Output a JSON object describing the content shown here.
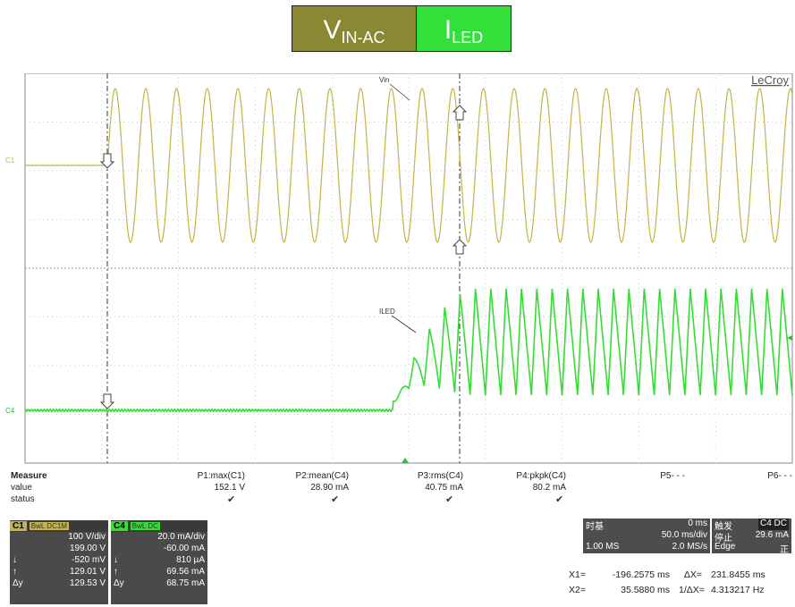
{
  "legend": {
    "vin_main": "V",
    "vin_sub": "IN-AC",
    "vin_color": "#8a8832",
    "iled_main": "I",
    "iled_sub": "LED",
    "iled_color": "#33e03a"
  },
  "scope": {
    "brand": "LeCroy",
    "vin_label": "Vin",
    "iled_label": "ILED",
    "c1_marker": "C1",
    "c4_marker": "C4",
    "c1_color": "#c2b44a",
    "c4_color": "#33dd33"
  },
  "chart_data": {
    "type": "line",
    "x_unit": "ms",
    "xlim": [
      -250,
      250
    ],
    "x_div": "50.0 ms/div",
    "series": [
      {
        "name": "C1",
        "unit": "V",
        "scale": "100 V/div",
        "before_switch_on": "flat",
        "after_switch_on": "sine ~50 Hz, ~152 V peak",
        "switch_on_ms": -196.2575
      },
      {
        "name": "C4",
        "unit": "mA",
        "scale": "20.0 mA/div",
        "before_switch_on": "~0 mA flat",
        "rise_start_ms": -10,
        "steady_peak_ma": 80,
        "steady_valley_ma": 10
      }
    ],
    "cursors": {
      "x1_ms": -196.2575,
      "x2_ms": 35.588
    }
  },
  "measure": {
    "title": "Measure",
    "row_value": "value",
    "row_status": "status",
    "params": [
      {
        "name": "P1:max(C1)",
        "value": "152.1 V",
        "status": "✔"
      },
      {
        "name": "P2:mean(C4)",
        "value": "28.90 mA",
        "status": "✔"
      },
      {
        "name": "P3:rms(C4)",
        "value": "40.75 mA",
        "status": "✔"
      },
      {
        "name": "P4:pkpk(C4)",
        "value": "80.2 mA",
        "status": "✔"
      },
      {
        "name": "P5- - -",
        "value": "",
        "status": ""
      },
      {
        "name": "P6- - -",
        "value": "",
        "status": ""
      }
    ]
  },
  "c1box": {
    "tag": "C1",
    "coupling": "BwL DC1M",
    "l1": "100 V/div",
    "l2": "199.00 V",
    "l3k": "↓",
    "l3v": "-520 mV",
    "l4k": "↑",
    "l4v": "129.01 V",
    "l5k": "Δy",
    "l5v": "129.53 V"
  },
  "c4box": {
    "tag": "C4",
    "coupling": "BwL DC",
    "l1": "20.0 mA/div",
    "l2": "-60.00 mA",
    "l3k": "↓",
    "l3v": "810 µA",
    "l4k": "↑",
    "l4v": "69.56 mA",
    "l5k": "Δy",
    "l5v": "68.75 mA"
  },
  "timebase": {
    "label": "时基",
    "offset": "0 ms",
    "div": "50.0 ms/div",
    "mem": "1.00 MS",
    "rate": "2.0 MS/s"
  },
  "trigger": {
    "label": "触发",
    "src": "C4 DC",
    "mode": "停止",
    "level": "29.6 mA",
    "type": "Edge",
    "slope": "正"
  },
  "cursors": {
    "x1_label": "X1=",
    "x1": "-196.2575 ms",
    "dx_label": "ΔX=",
    "dx": "231.8455 ms",
    "x2_label": "X2=",
    "x2": "35.5880 ms",
    "f_label": "1/ΔX=",
    "f": "4.313217 Hz"
  }
}
